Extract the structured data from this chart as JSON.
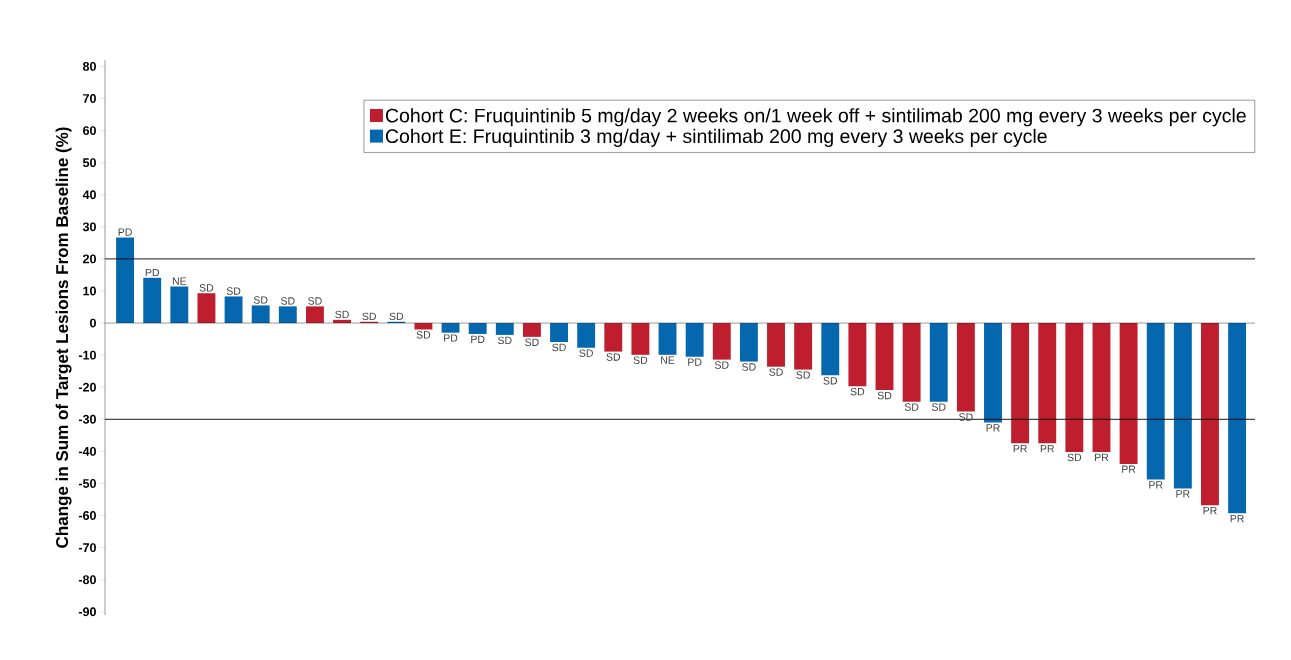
{
  "chart_data": {
    "type": "bar",
    "ylabel": "Change in Sum of Target Lesions From Baseline (%)",
    "categories": [
      null,
      null,
      null,
      null,
      null,
      null,
      null,
      null,
      null,
      null,
      null,
      null,
      null,
      null,
      null,
      null,
      null,
      null,
      null,
      null,
      null,
      null,
      null,
      null,
      null,
      null,
      null,
      null,
      null,
      null,
      null,
      null,
      null,
      null,
      null,
      null,
      null,
      null,
      null,
      null,
      null,
      null
    ],
    "series": [
      {
        "name": "Cohort C: Fruquintinib 5 mg/day 2 weeks on/1 week off + sintilimab 200 mg every 3 weeks per cycle",
        "color": "#be1e2d",
        "values": [
          null,
          null,
          null,
          9.3,
          null,
          null,
          null,
          5.2,
          1.0,
          0.4,
          null,
          -2.0,
          null,
          null,
          null,
          -4.3,
          null,
          null,
          -8.9,
          -9.9,
          null,
          null,
          -11.4,
          null,
          -13.6,
          -14.5,
          null,
          -19.7,
          -20.9,
          -24.5,
          null,
          -27.6,
          null,
          -37.5,
          -37.5,
          -40.2,
          -40.2,
          -43.9,
          null,
          null,
          -56.8,
          null
        ],
        "value_labels": [
          null,
          null,
          null,
          "SD",
          null,
          null,
          null,
          "SD",
          "SD",
          "SD",
          null,
          "SD",
          null,
          null,
          null,
          "SD",
          null,
          null,
          "SD",
          "SD",
          null,
          null,
          "SD",
          null,
          "SD",
          "SD",
          null,
          "SD",
          "SD",
          "SD",
          null,
          "SD",
          null,
          "PR",
          "PR",
          "SD",
          "PR",
          "PR",
          null,
          null,
          "PR",
          null
        ]
      },
      {
        "name": "Cohort E: Fruquintinib 3 mg/day + sintilimab 200 mg every 3 weeks per cycle",
        "color": "#0568ae",
        "values": [
          26.7,
          14.1,
          11.4,
          null,
          8.3,
          5.5,
          5.2,
          null,
          null,
          null,
          0.4,
          null,
          -3.0,
          -3.4,
          -3.7,
          null,
          -5.9,
          -7.7,
          null,
          null,
          -9.9,
          -10.5,
          null,
          -12.0,
          null,
          null,
          -16.3,
          null,
          null,
          null,
          -24.5,
          null,
          -31.0,
          null,
          null,
          null,
          null,
          null,
          -48.8,
          -51.6,
          null,
          -59.3
        ],
        "value_labels": [
          "PD",
          "PD",
          "NE",
          null,
          "SD",
          "SD",
          "SD",
          null,
          null,
          null,
          "SD",
          null,
          "PD",
          "PD",
          "SD",
          null,
          "SD",
          "SD",
          null,
          null,
          "NE",
          "PD",
          null,
          "SD",
          null,
          null,
          "SD",
          null,
          null,
          null,
          "SD",
          null,
          "PR",
          null,
          null,
          null,
          null,
          null,
          "PR",
          "PR",
          null,
          "PR"
        ]
      }
    ],
    "ylim": [
      -91,
      82
    ],
    "yticks": [
      -90,
      -80,
      -70,
      -60,
      -50,
      -40,
      -30,
      -20,
      -10,
      0,
      10,
      20,
      30,
      40,
      50,
      60,
      70,
      80
    ],
    "ref_lines": [
      {
        "axis": "y",
        "value": 20,
        "color": "#000000"
      },
      {
        "axis": "y",
        "value": -30,
        "color": "#000000"
      }
    ],
    "legend": "top right",
    "grid": false
  }
}
